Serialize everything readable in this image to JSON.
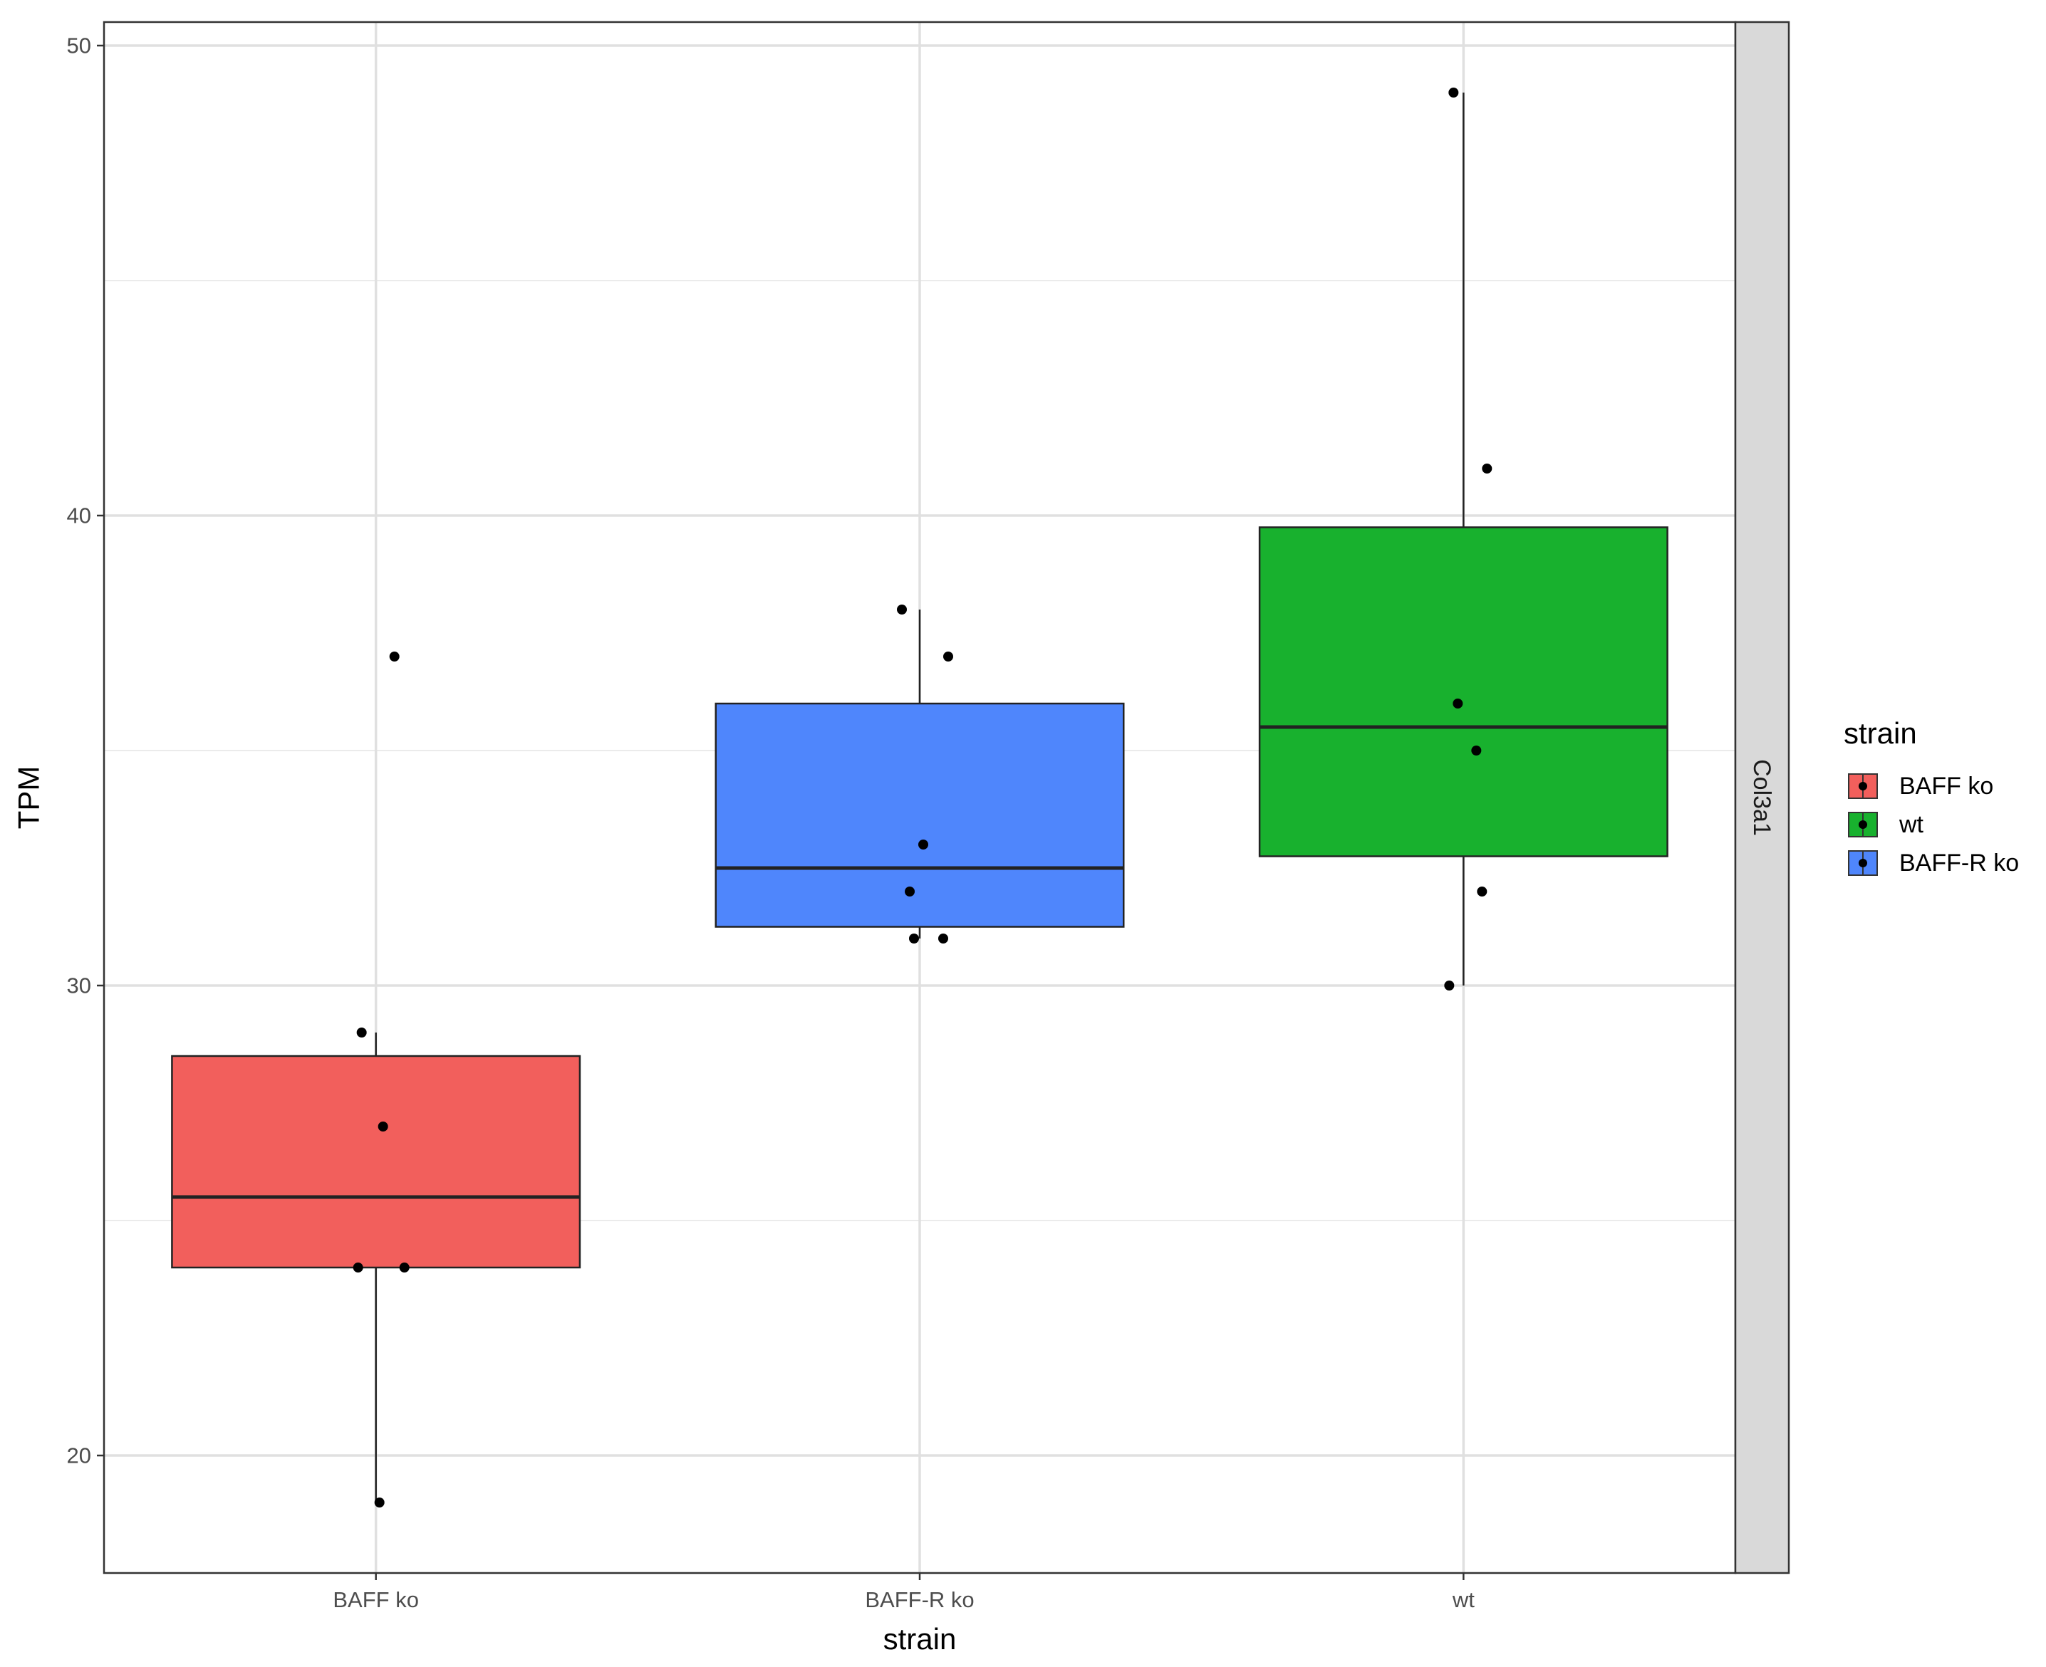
{
  "chart_data": {
    "type": "box",
    "xlabel": "strain",
    "ylabel": "TPM",
    "categories": [
      "BAFF ko",
      "BAFF-R ko",
      "wt"
    ],
    "facet_label": "Col3a1",
    "ylim": [
      17.5,
      50.5
    ],
    "y_ticks": [
      20,
      30,
      40,
      50
    ],
    "grid": true,
    "legend": {
      "title": "strain",
      "position": "right",
      "entries": [
        {
          "label": "BAFF ko",
          "color": "#F25F5C"
        },
        {
          "label": "wt",
          "color": "#18B12E"
        },
        {
          "label": "BAFF-R ko",
          "color": "#4F86FC"
        }
      ]
    },
    "boxes": [
      {
        "category": "BAFF ko",
        "color": "#F25F5C",
        "lower_whisker": 19,
        "q1": 24,
        "median": 25.5,
        "q3": 28.5,
        "upper_whisker": 29
      },
      {
        "category": "BAFF-R ko",
        "color": "#4F86FC",
        "lower_whisker": 31,
        "q1": 31.25,
        "median": 32.5,
        "q3": 36,
        "upper_whisker": 38
      },
      {
        "category": "wt",
        "color": "#18B12E",
        "lower_whisker": 30,
        "q1": 32.75,
        "median": 35.5,
        "q3": 39.75,
        "upper_whisker": 49
      }
    ],
    "points": [
      {
        "category": "BAFF ko",
        "values": [
          37,
          29,
          27,
          24,
          24,
          19
        ]
      },
      {
        "category": "BAFF-R ko",
        "values": [
          38,
          37,
          33,
          32,
          31,
          31
        ]
      },
      {
        "category": "wt",
        "values": [
          49,
          41,
          36,
          35,
          32,
          30
        ]
      }
    ]
  }
}
